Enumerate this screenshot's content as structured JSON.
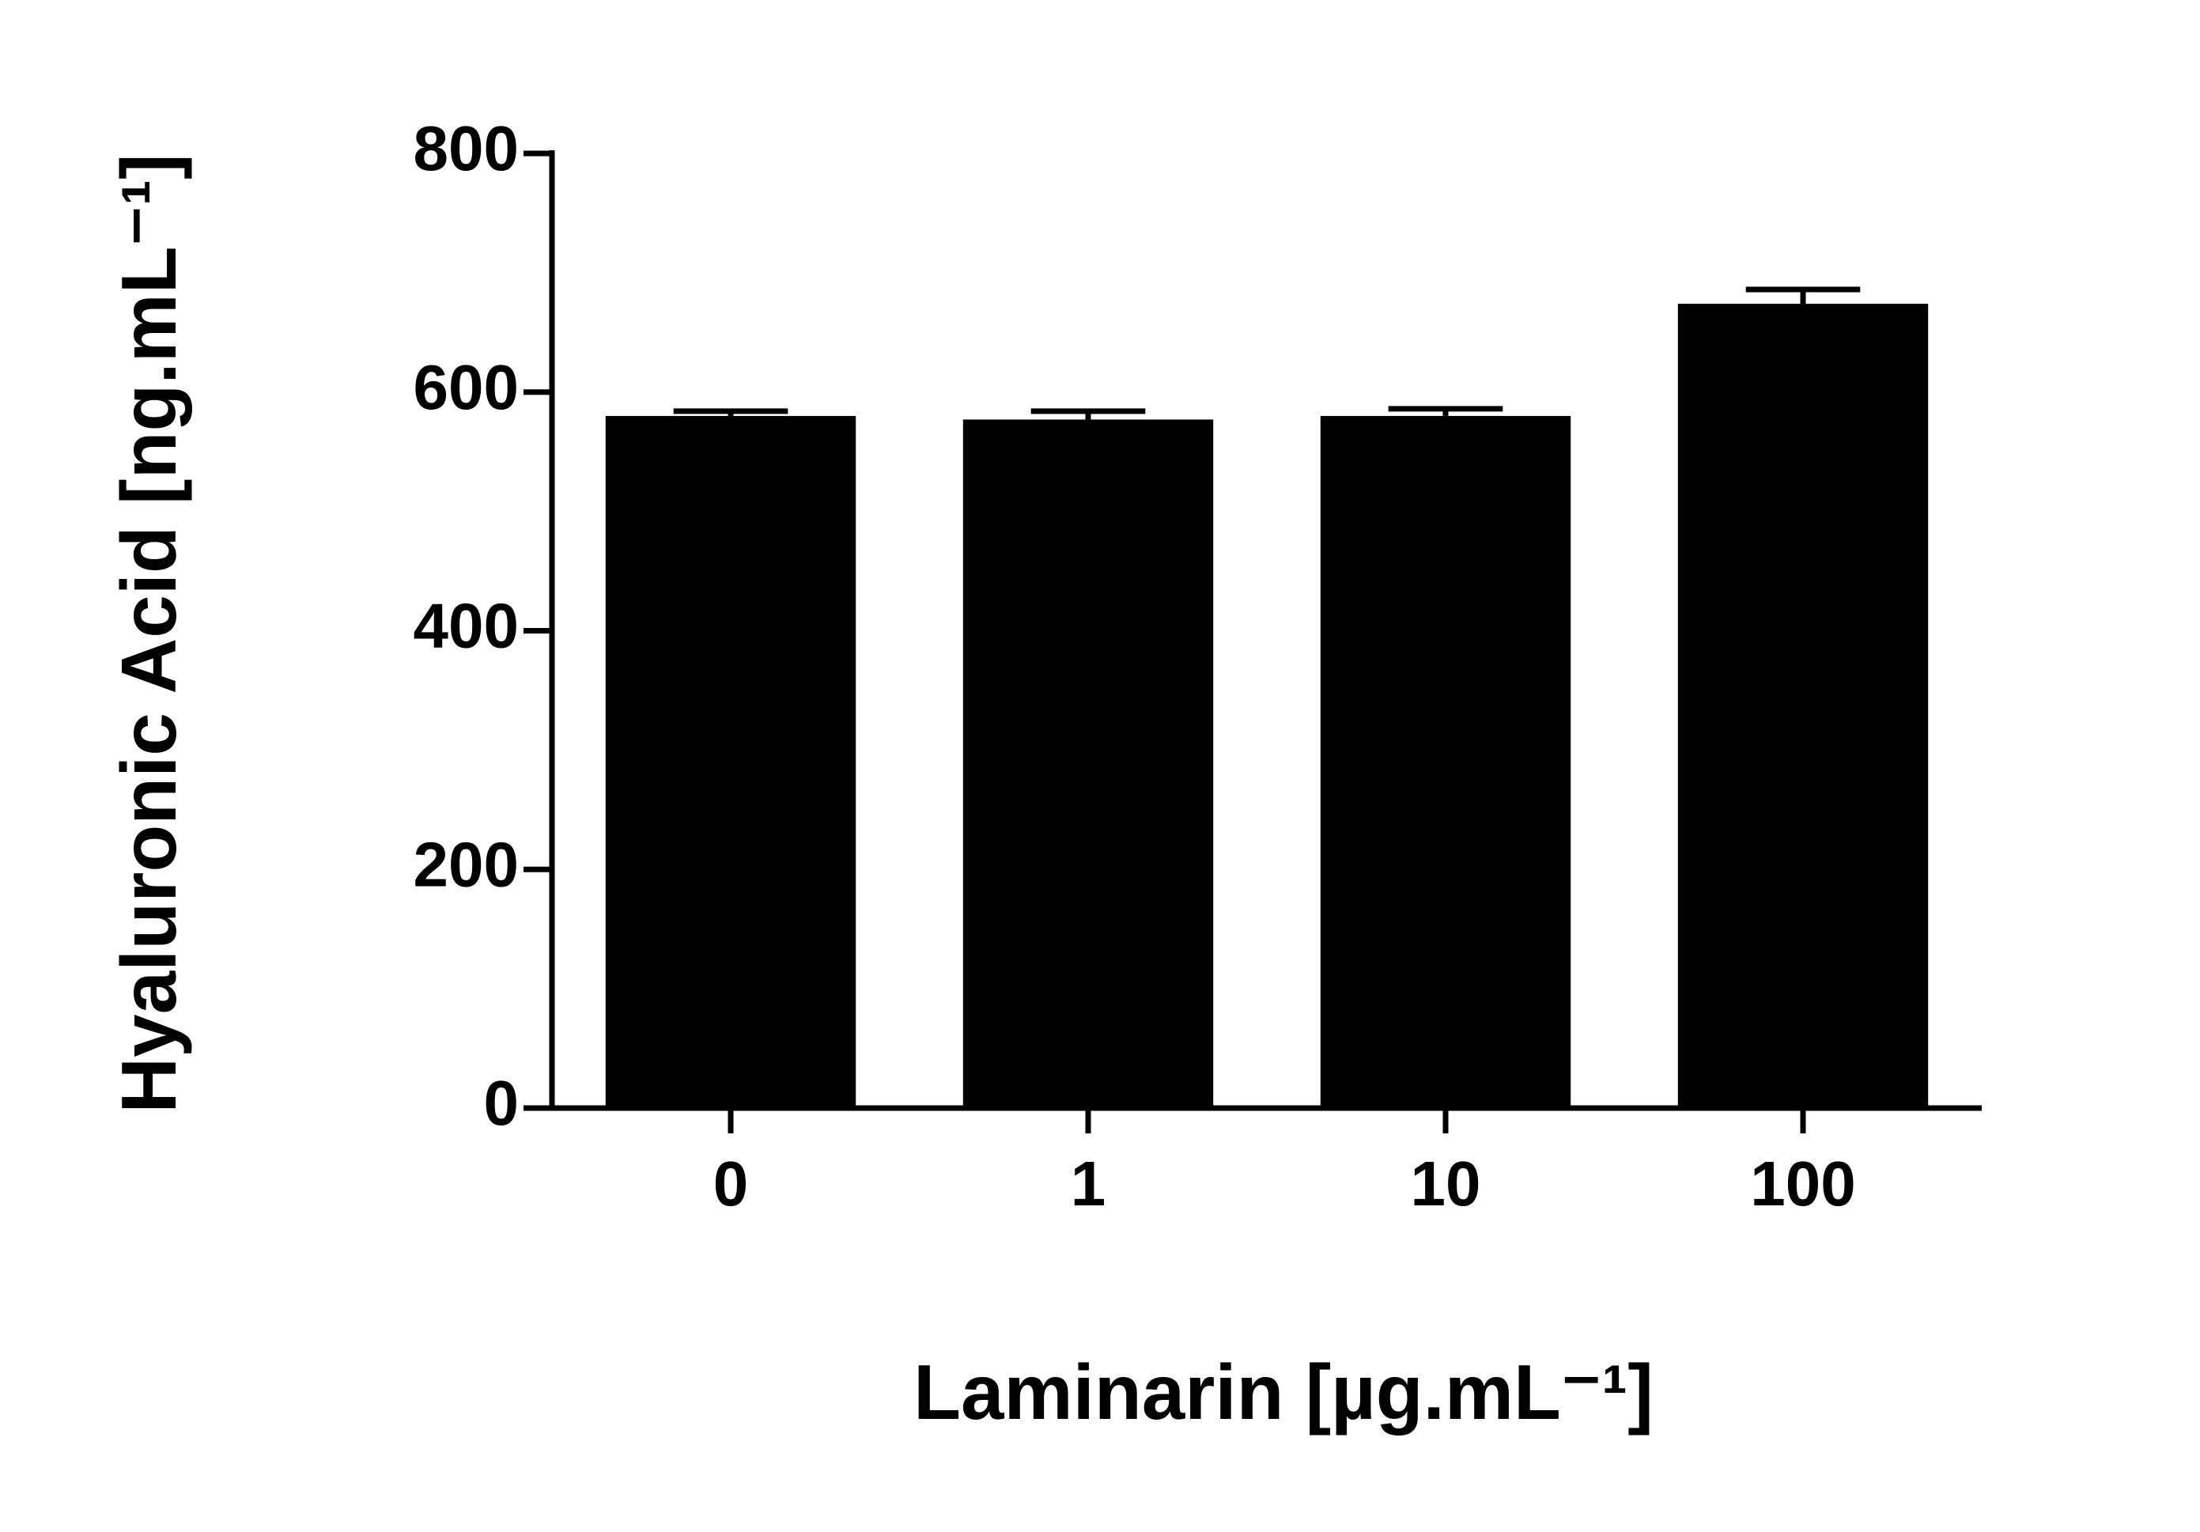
{
  "chart_data": {
    "type": "bar",
    "x_label": "Laminarin [µg.mL⁻¹]",
    "y_label": "Hyaluronic Acid [ng.mL⁻¹]",
    "categories": [
      "0",
      "1",
      "10",
      "100"
    ],
    "values": [
      580,
      577,
      580,
      674
    ],
    "errors": [
      4,
      7,
      6,
      12
    ],
    "color": "#000000",
    "ylim": [
      0,
      800
    ],
    "yticks": [
      0,
      200,
      400,
      600,
      800
    ],
    "grid": false
  }
}
